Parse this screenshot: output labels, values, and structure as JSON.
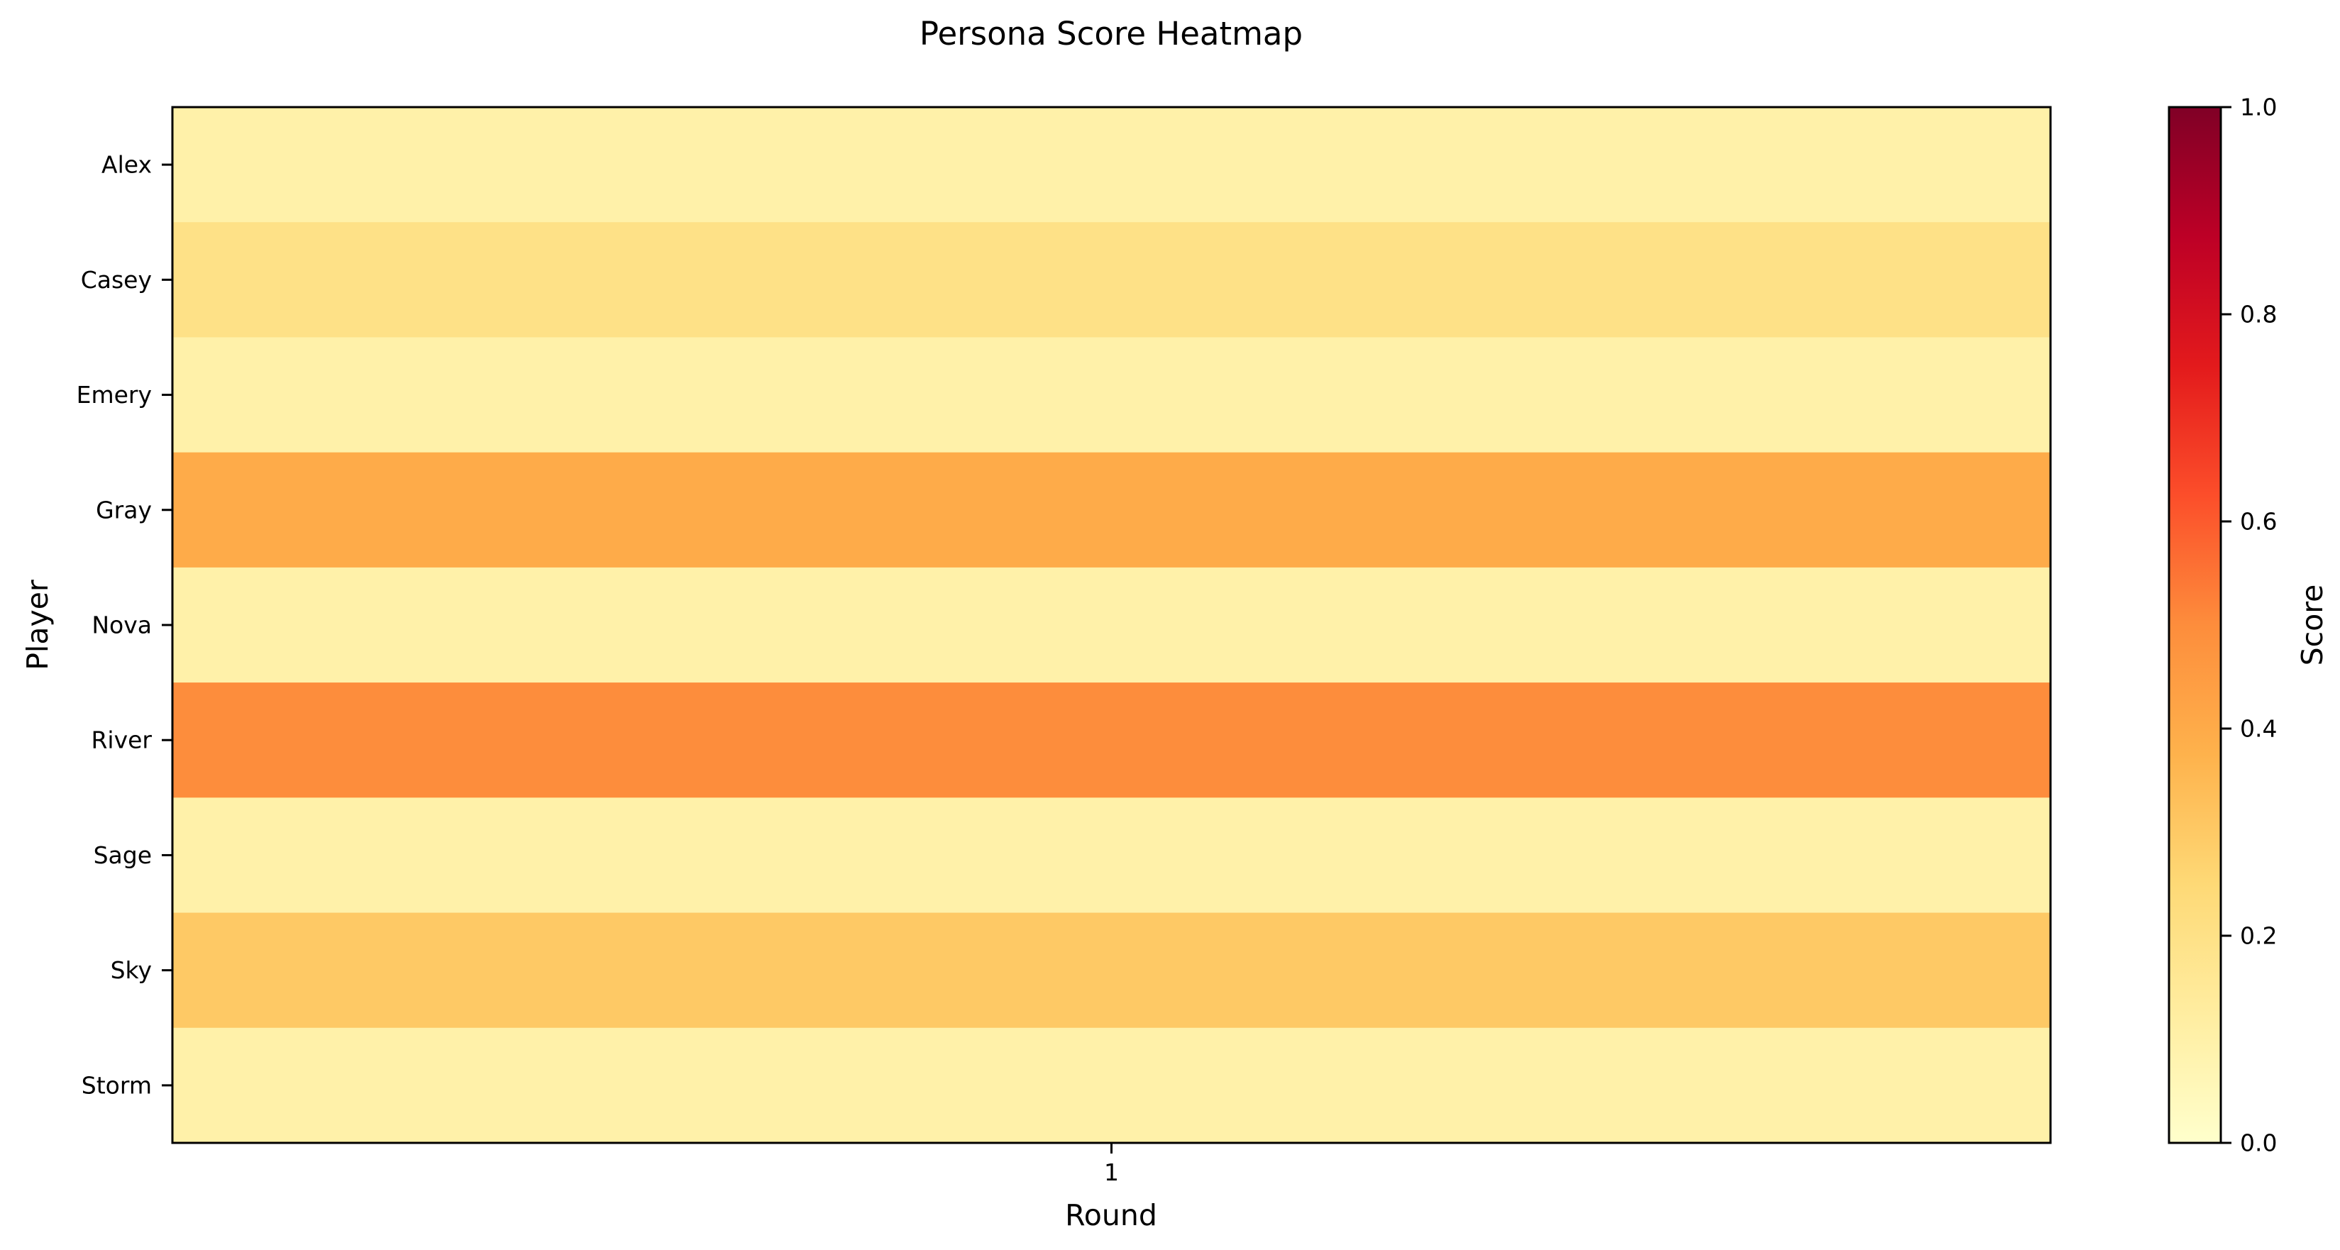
{
  "chart_data": {
    "type": "heatmap",
    "title": "Persona Score Heatmap",
    "xlabel": "Round",
    "ylabel": "Player",
    "x_categories": [
      "1"
    ],
    "y_categories": [
      "Alex",
      "Casey",
      "Emery",
      "Gray",
      "Nova",
      "River",
      "Sage",
      "Sky",
      "Storm"
    ],
    "values": [
      [
        0.1
      ],
      [
        0.2
      ],
      [
        0.1
      ],
      [
        0.4
      ],
      [
        0.1
      ],
      [
        0.5
      ],
      [
        0.1
      ],
      [
        0.3
      ],
      [
        0.1
      ]
    ],
    "colormap": "YlOrRd",
    "colormap_stops": [
      "#ffffcc",
      "#ffeda0",
      "#fed976",
      "#feb24c",
      "#fd8d3c",
      "#fc4e2a",
      "#e31a1c",
      "#bd0026",
      "#800026"
    ],
    "vmin": 0.0,
    "vmax": 1.0,
    "colorbar": {
      "label": "Score",
      "ticks": [
        0.0,
        0.2,
        0.4,
        0.6,
        0.8,
        1.0
      ],
      "tick_labels": [
        "0.0",
        "0.2",
        "0.4",
        "0.6",
        "0.8",
        "1.0"
      ]
    },
    "grid": false,
    "legend": "none"
  }
}
